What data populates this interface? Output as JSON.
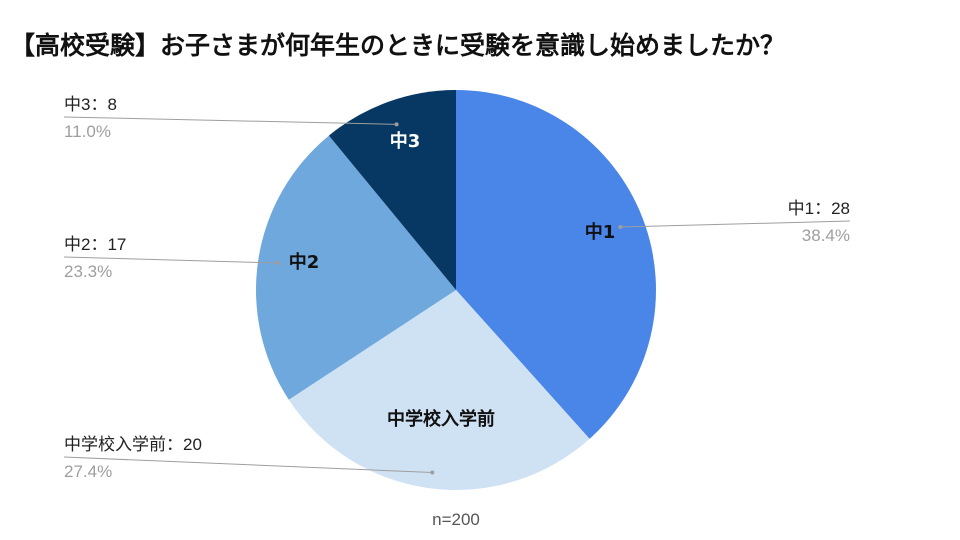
{
  "chart_data": {
    "type": "pie",
    "title": "【高校受験】お子さまが何年生のときに受験を意識し始めましたか？",
    "note": "n=200",
    "slices": [
      {
        "label": "中1",
        "value": 28,
        "percent": "38.4%",
        "ext_label": "中1：28",
        "color": "#4a86e8",
        "text_color": "#111111"
      },
      {
        "label": "中学校入学前",
        "value": 20,
        "percent": "27.4%",
        "ext_label": "中学校入学前：20",
        "color": "#cfe2f3",
        "text_color": "#111111"
      },
      {
        "label": "中2",
        "value": 17,
        "percent": "23.3%",
        "ext_label": "中2：17",
        "color": "#6fa8dc",
        "text_color": "#111111"
      },
      {
        "label": "中3",
        "value": 8,
        "percent": "11.0%",
        "ext_label": "中3：8",
        "color": "#073763",
        "text_color": "#ffffff"
      }
    ],
    "start_angle": "12 o'clock",
    "direction": "clockwise",
    "legend": "none"
  }
}
